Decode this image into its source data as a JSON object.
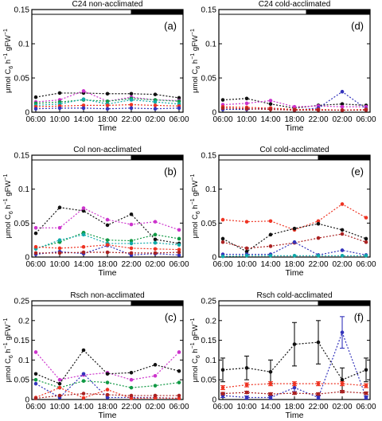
{
  "figure": {
    "x_label": "Time",
    "y_label_main": "μmol C",
    "y_label_sub": "6",
    "y_label_rest": " h",
    "y_label_sup": "−1",
    "y_label_tail": " gFW",
    "y_label_sup2": "−1"
  },
  "colors": {
    "black": "#111111",
    "magenta": "#cc33cc",
    "green": "#119944",
    "blue": "#3333bb",
    "red": "#ee3322",
    "teal": "#11aaaa",
    "darkred": "#aa2222"
  },
  "chart_data": [
    {
      "type": "line",
      "title": "C24 non-acclimated",
      "panel_label": "(a)",
      "x": [
        "06:00",
        "10:00",
        "14:00",
        "18:00",
        "22:00",
        "02:00",
        "06:00"
      ],
      "ylim": [
        0,
        0.15
      ],
      "yticks": [
        "0",
        "0.05",
        "0.1",
        "0.15"
      ],
      "light_dark_bar": "light 06:00–22:00, dark 22:00–06:00",
      "series": [
        {
          "color": "black",
          "values": [
            0.022,
            0.028,
            0.028,
            0.027,
            0.027,
            0.026,
            0.021
          ]
        },
        {
          "color": "magenta",
          "values": [
            0.015,
            0.018,
            0.031,
            0.016,
            0.022,
            0.018,
            0.017
          ]
        },
        {
          "color": "green",
          "values": [
            0.013,
            0.015,
            0.018,
            0.016,
            0.02,
            0.018,
            0.016
          ]
        },
        {
          "color": "teal",
          "values": [
            0.01,
            0.012,
            0.019,
            0.012,
            0.018,
            0.015,
            0.012
          ]
        },
        {
          "color": "red",
          "values": [
            0.008,
            0.009,
            0.01,
            0.01,
            0.011,
            0.01,
            0.009
          ]
        },
        {
          "color": "blue",
          "values": [
            0.005,
            0.006,
            0.006,
            0.005,
            0.006,
            0.005,
            0.006
          ]
        }
      ]
    },
    {
      "type": "line",
      "title": "C24 cold-acclimated",
      "panel_label": "(d)",
      "x": [
        "06:00",
        "10:00",
        "14:00",
        "18:00",
        "22:00",
        "02:00",
        "06:00"
      ],
      "ylim": [
        0,
        0.15
      ],
      "yticks": [
        "0",
        "0.05",
        "0.1",
        "0.15"
      ],
      "light_dark_bar": "light 06:00–20:00, dark 20:00–06:00",
      "series": [
        {
          "color": "black",
          "values": [
            0.018,
            0.02,
            0.012,
            0.006,
            0.01,
            0.012,
            0.01
          ]
        },
        {
          "color": "magenta",
          "values": [
            0.011,
            0.013,
            0.017,
            0.008,
            0.009,
            0.008,
            0.008
          ]
        },
        {
          "color": "blue",
          "values": [
            0.004,
            0.004,
            0.006,
            0.003,
            0.006,
            0.03,
            0.005
          ]
        },
        {
          "color": "red",
          "values": [
            0.008,
            0.007,
            0.006,
            0.004,
            0.004,
            0.003,
            0.004
          ]
        },
        {
          "color": "darkred",
          "values": [
            0.006,
            0.005,
            0.004,
            0.003,
            0.003,
            0.003,
            0.003
          ]
        }
      ]
    },
    {
      "type": "line",
      "title": "Col non-acclimated",
      "panel_label": "(b)",
      "x": [
        "06:00",
        "10:00",
        "14:00",
        "18:00",
        "22:00",
        "02:00",
        "06:00"
      ],
      "ylim": [
        0,
        0.15
      ],
      "yticks": [
        "0",
        "0.05",
        "0.1",
        "0.15"
      ],
      "light_dark_bar": "light 06:00–22:00, dark 22:00–06:00",
      "series": [
        {
          "color": "black",
          "values": [
            0.035,
            0.073,
            0.068,
            0.047,
            0.063,
            0.026,
            0.02
          ]
        },
        {
          "color": "magenta",
          "values": [
            0.043,
            0.043,
            0.072,
            0.055,
            0.048,
            0.052,
            0.04
          ]
        },
        {
          "color": "green",
          "values": [
            0.013,
            0.022,
            0.036,
            0.025,
            0.024,
            0.033,
            0.027
          ]
        },
        {
          "color": "teal",
          "values": [
            0.012,
            0.025,
            0.033,
            0.02,
            0.02,
            0.021,
            0.018
          ]
        },
        {
          "color": "blue",
          "values": [
            0.004,
            0.008,
            0.005,
            0.017,
            0.003,
            0.005,
            0.003
          ]
        },
        {
          "color": "red",
          "values": [
            0.015,
            0.013,
            0.015,
            0.018,
            0.013,
            0.012,
            0.011
          ]
        },
        {
          "color": "darkred",
          "values": [
            0.006,
            0.006,
            0.007,
            0.007,
            0.006,
            0.006,
            0.007
          ]
        }
      ]
    },
    {
      "type": "line",
      "title": "Col cold-acclimated",
      "panel_label": "(e)",
      "x": [
        "06:00",
        "10:00",
        "14:00",
        "18:00",
        "22:00",
        "02:00",
        "06:00"
      ],
      "ylim": [
        0,
        0.15
      ],
      "yticks": [
        "0",
        "0.05",
        "0.1",
        "0.15"
      ],
      "light_dark_bar": "light 06:00–22:00, dark 22:00–06:00",
      "series": [
        {
          "color": "red",
          "values": [
            0.055,
            0.052,
            0.053,
            0.04,
            0.053,
            0.078,
            0.058
          ]
        },
        {
          "color": "black",
          "values": [
            0.027,
            0.008,
            0.033,
            0.042,
            0.049,
            0.04,
            0.027
          ]
        },
        {
          "color": "darkred",
          "values": [
            0.022,
            0.013,
            0.016,
            0.021,
            0.028,
            0.034,
            0.022
          ]
        },
        {
          "color": "blue",
          "values": [
            0.004,
            0.004,
            0.004,
            0.022,
            0.003,
            0.01,
            0.003
          ]
        },
        {
          "color": "teal",
          "values": [
            0.001,
            0.002,
            0.002,
            0.002,
            0.002,
            0.002,
            0.002
          ]
        }
      ]
    },
    {
      "type": "line",
      "title": "Rsch non-acclimated",
      "panel_label": "(c)",
      "x": [
        "06:00",
        "10:00",
        "14:00",
        "18:00",
        "22:00",
        "02:00",
        "06:00"
      ],
      "ylim": [
        0,
        0.25
      ],
      "yticks": [
        "0",
        "0.05",
        "0.1",
        "0.15",
        "0.2",
        "0.25"
      ],
      "light_dark_bar": "light 06:00–22:00, dark 22:00–06:00",
      "series": [
        {
          "color": "magenta",
          "values": [
            0.12,
            0.05,
            0.062,
            0.068,
            0.05,
            0.06,
            0.12
          ]
        },
        {
          "color": "black",
          "values": [
            0.065,
            0.04,
            0.125,
            0.065,
            0.068,
            0.088,
            0.072
          ]
        },
        {
          "color": "green",
          "values": [
            0.05,
            0.03,
            0.047,
            0.043,
            0.03,
            0.035,
            0.043
          ]
        },
        {
          "color": "blue",
          "values": [
            0.04,
            0.005,
            0.065,
            0.005,
            0.005,
            0.005,
            0.003
          ]
        },
        {
          "color": "red",
          "values": [
            0.005,
            0.03,
            0.004,
            0.025,
            0.003,
            0.004,
            0.003
          ]
        },
        {
          "color": "darkred",
          "values": [
            0.003,
            0.01,
            0.015,
            0.012,
            0.01,
            0.01,
            0.01
          ]
        }
      ]
    },
    {
      "type": "line",
      "title": "Rsch cold-acclimated",
      "panel_label": "(f)",
      "x": [
        "06:00",
        "10:00",
        "14:00",
        "18:00",
        "22:00",
        "02:00",
        "06:00"
      ],
      "ylim": [
        0,
        0.25
      ],
      "yticks": [
        "0",
        "0.05",
        "0.1",
        "0.15",
        "0.2",
        "0.25"
      ],
      "light_dark_bar": "light 06:00–22:00, dark 22:00–06:00",
      "series": [
        {
          "color": "black",
          "values": [
            0.075,
            0.08,
            0.07,
            0.14,
            0.145,
            0.05,
            0.075
          ],
          "error": [
            0.03,
            0.03,
            0.03,
            0.055,
            0.055,
            0.03,
            0.03
          ]
        },
        {
          "color": "blue",
          "values": [
            0.01,
            0.005,
            0.005,
            0.03,
            0.005,
            0.17,
            0.005
          ],
          "error": [
            0.005,
            0.004,
            0.004,
            0.01,
            0.004,
            0.04,
            0.004
          ]
        },
        {
          "color": "red",
          "values": [
            0.03,
            0.037,
            0.04,
            0.04,
            0.04,
            0.04,
            0.035
          ],
          "error": [
            0.005,
            0.005,
            0.005,
            0.005,
            0.005,
            0.005,
            0.005
          ]
        },
        {
          "color": "darkred",
          "values": [
            0.015,
            0.018,
            0.014,
            0.016,
            0.014,
            0.02,
            0.016
          ],
          "error": [
            0.003,
            0.003,
            0.003,
            0.003,
            0.003,
            0.003,
            0.003
          ]
        }
      ]
    }
  ]
}
